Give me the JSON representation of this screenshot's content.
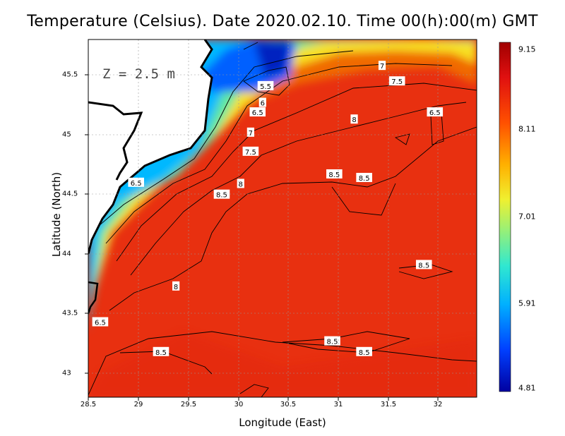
{
  "title": "Temperature (Celsius). Date 2020.02.10. Time 00(h):00(m) GMT",
  "xlabel": "Longitude (East)",
  "ylabel": "Latitude (North)",
  "depth_label": "Z = 2.5 m",
  "x_ticks": [
    "28.5",
    "29",
    "29.5",
    "30",
    "30.5",
    "31",
    "31.5",
    "32"
  ],
  "y_ticks": [
    "45.5",
    "45",
    "44.5",
    "44",
    "43.5",
    "43"
  ],
  "colorbar": {
    "ticks": [
      "9.15",
      "8.11",
      "7.01",
      "5.91",
      "4.81"
    ],
    "min": 4.81,
    "max": 9.15
  },
  "extent": {
    "lon": [
      28.5,
      32.4
    ],
    "lat": [
      42.8,
      45.8
    ]
  },
  "contour_labels": [
    {
      "text": "7",
      "lon": 31.45,
      "lat": 45.58
    },
    {
      "text": "7.5",
      "lon": 31.6,
      "lat": 45.45
    },
    {
      "text": "5.5",
      "lon": 30.28,
      "lat": 45.41
    },
    {
      "text": "6",
      "lon": 30.25,
      "lat": 45.27
    },
    {
      "text": "6.5",
      "lon": 30.2,
      "lat": 45.19
    },
    {
      "text": "6.5",
      "lon": 31.98,
      "lat": 45.19
    },
    {
      "text": "8",
      "lon": 31.17,
      "lat": 45.13
    },
    {
      "text": "7",
      "lon": 30.13,
      "lat": 45.02
    },
    {
      "text": "7.5",
      "lon": 30.13,
      "lat": 44.86
    },
    {
      "text": "8.5",
      "lon": 30.97,
      "lat": 44.67
    },
    {
      "text": "8.5",
      "lon": 31.27,
      "lat": 44.64
    },
    {
      "text": "6.5",
      "lon": 28.98,
      "lat": 44.6
    },
    {
      "text": "8",
      "lon": 30.03,
      "lat": 44.59
    },
    {
      "text": "8.5",
      "lon": 29.84,
      "lat": 44.5
    },
    {
      "text": "8.5",
      "lon": 31.87,
      "lat": 43.91
    },
    {
      "text": "8",
      "lon": 29.38,
      "lat": 43.73
    },
    {
      "text": "6.5",
      "lon": 28.62,
      "lat": 43.43
    },
    {
      "text": "8.5",
      "lon": 30.95,
      "lat": 43.27
    },
    {
      "text": "8.5",
      "lon": 31.27,
      "lat": 43.18
    },
    {
      "text": "8.5",
      "lon": 29.23,
      "lat": 43.18
    }
  ]
}
